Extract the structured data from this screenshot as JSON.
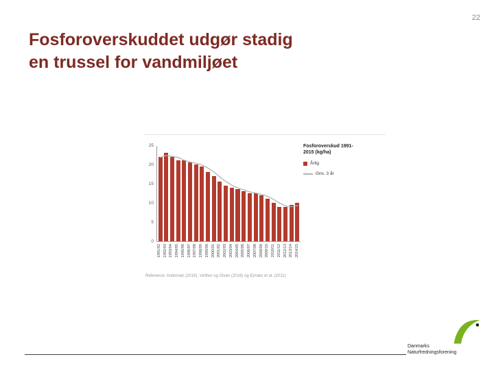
{
  "slide": {
    "page_number": "22",
    "title_line1": "Fosforoverskuddet udgør stadig",
    "title_line2": "en trussel for vandmiljøet"
  },
  "chart_data": {
    "type": "bar",
    "title": "Fosforoverskud 1991-2015 (kg/ha)",
    "categories": [
      "1991/92",
      "1992/93",
      "1993/94",
      "1994/95",
      "1995/96",
      "1996/97",
      "1997/98",
      "1998/99",
      "1999/00",
      "2000/01",
      "2001/02",
      "2002/03",
      "2003/04",
      "2004/05",
      "2005/06",
      "2006/07",
      "2007/08",
      "2008/09",
      "2009/10",
      "2010/11",
      "2011/12",
      "2012/13",
      "2013/14",
      "2014/15"
    ],
    "series": [
      {
        "name": "Årlig",
        "type": "bar",
        "color": "#b23b2e",
        "values": [
          22,
          23,
          22,
          21,
          21,
          20.5,
          20,
          19.5,
          18,
          17,
          15.5,
          14.5,
          14,
          13.5,
          13,
          12.5,
          12.5,
          12,
          11,
          10,
          9,
          9,
          9.5,
          10
        ]
      },
      {
        "name": "Gns. 3 år",
        "type": "line",
        "color": "#b3b3b3",
        "values": [
          22,
          22.5,
          22.3,
          22,
          21.3,
          20.8,
          20.5,
          20,
          19.2,
          18.2,
          16.8,
          15.7,
          14.7,
          14,
          13.5,
          13,
          12.7,
          12.3,
          11.8,
          11,
          10,
          9.3,
          9.2,
          9.5
        ]
      }
    ],
    "ylim": [
      0,
      25
    ],
    "yticks": [
      0,
      5,
      10,
      15,
      20,
      25
    ],
    "xlabel": "",
    "ylabel": "",
    "grid": false,
    "legend_position": "right"
  },
  "reference": "Reference: Andersen (2016), Vinther og Olsen (2016) og Ejrnæs et al. (2011)",
  "footer": {
    "org_line1": "Danmarks",
    "org_line2": "Naturfredningsforening"
  },
  "colors": {
    "title": "#7e2a23",
    "bar": "#b23b2e",
    "line": "#b3b3b3",
    "logo_green": "#7ab41d",
    "logo_dot": "#16280c"
  }
}
